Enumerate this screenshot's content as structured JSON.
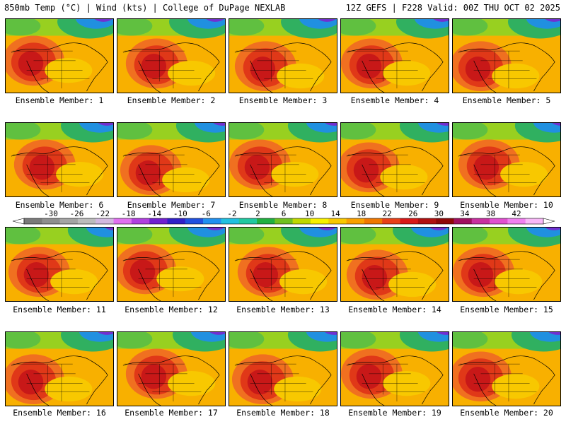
{
  "header": {
    "left": "850mb Temp (°C) | Wind (kts) | College of DuPage NEXLAB",
    "right": "12Z GEFS | F228 Valid: 00Z THU OCT 02 2025"
  },
  "members": [
    "Ensemble Member: 1",
    "Ensemble Member: 2",
    "Ensemble Member: 3",
    "Ensemble Member: 4",
    "Ensemble Member: 5",
    "Ensemble Member: 6",
    "Ensemble Member: 7",
    "Ensemble Member: 8",
    "Ensemble Member: 9",
    "Ensemble Member: 10",
    "Ensemble Member: 11",
    "Ensemble Member: 12",
    "Ensemble Member: 13",
    "Ensemble Member: 14",
    "Ensemble Member: 15",
    "Ensemble Member: 16",
    "Ensemble Member: 17",
    "Ensemble Member: 18",
    "Ensemble Member: 19",
    "Ensemble Member: 20"
  ],
  "colorbar": {
    "labels": [
      "-30",
      "-26",
      "-22",
      "-18",
      "-14",
      "-10",
      "-6",
      "-2",
      "2",
      "6",
      "10",
      "14",
      "18",
      "22",
      "26",
      "30",
      "34",
      "38",
      "42"
    ],
    "colors": [
      "#7a7a7a",
      "#8e8e8e",
      "#a4a4a4",
      "#bcbcbc",
      "#d2b8e0",
      "#e070f0",
      "#b040e0",
      "#7020d0",
      "#3020c8",
      "#2050e0",
      "#2090f0",
      "#20c0e0",
      "#20c8a0",
      "#20b040",
      "#70c020",
      "#c0d800",
      "#f8f000",
      "#f8c800",
      "#f8a000",
      "#f07800",
      "#e84018",
      "#d81818",
      "#b01010",
      "#900808",
      "#a01060",
      "#c830a0",
      "#e050d0",
      "#f080f0",
      "#f8b8f8"
    ]
  }
}
